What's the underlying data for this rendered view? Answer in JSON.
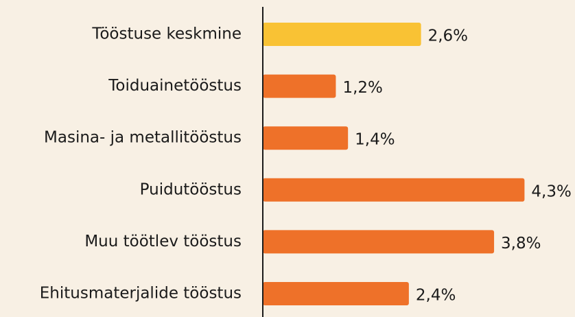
{
  "chart_data": {
    "type": "barh",
    "categories": [
      "Tööstuse keskmine",
      "Toiduainetööstus",
      "Masina- ja metallitööstus",
      "Puidutööstus",
      "Muu töötlev tööstus",
      "Ehitusmaterjalide tööstus"
    ],
    "values": [
      2.6,
      1.2,
      1.4,
      4.3,
      3.8,
      2.4
    ],
    "value_labels": [
      "2,6%",
      "1,2%",
      "1,4%",
      "4,3%",
      "3,8%",
      "2,4%"
    ],
    "colors": [
      "#f9c234",
      "#ee7129",
      "#ee7129",
      "#ee7129",
      "#ee7129",
      "#ee7129"
    ],
    "xlim": [
      0,
      5
    ]
  }
}
